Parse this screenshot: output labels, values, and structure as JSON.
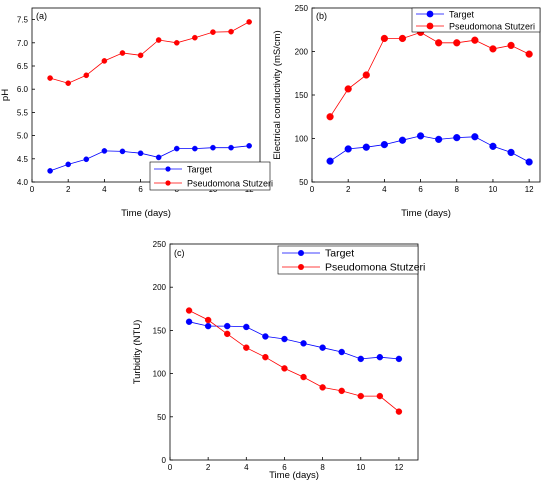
{
  "chart_data": [
    {
      "type": "line",
      "panel_label": "(a)",
      "xlabel": "Time (days)",
      "ylabel": "pH",
      "xlim": [
        0,
        12.6
      ],
      "ylim": [
        4.0,
        7.75
      ],
      "xticks": [
        "0",
        "2",
        "4",
        "6",
        "8",
        "10",
        "12"
      ],
      "yticks": [
        "4.0",
        "4.5",
        "5.0",
        "5.5",
        "6.0",
        "6.5",
        "7.0",
        "7.5"
      ],
      "x": [
        1,
        2,
        3,
        4,
        5,
        6,
        7,
        8,
        9,
        10,
        11,
        12
      ],
      "legend_position": "bottom-right",
      "series": [
        {
          "name": "Target",
          "color": "#0000ff",
          "values": [
            4.24,
            4.38,
            4.49,
            4.67,
            4.66,
            4.62,
            4.53,
            4.72,
            4.72,
            4.74,
            4.74,
            4.78
          ]
        },
        {
          "name": "Pseudomona Stutzeri",
          "color": "#ff0000",
          "values": [
            6.24,
            6.13,
            6.3,
            6.61,
            6.78,
            6.73,
            7.06,
            7.0,
            7.11,
            7.23,
            7.24,
            7.45
          ]
        }
      ]
    },
    {
      "type": "line",
      "panel_label": "(b)",
      "xlabel": "Time (days)",
      "ylabel": "Electrical conductivity (mS/cm)",
      "xlim": [
        0,
        12.6
      ],
      "ylim": [
        50,
        250
      ],
      "xticks": [
        "0",
        "2",
        "4",
        "6",
        "8",
        "10",
        "12"
      ],
      "yticks": [
        "50",
        "100",
        "150",
        "200",
        "250"
      ],
      "x": [
        1,
        2,
        3,
        4,
        5,
        6,
        7,
        8,
        9,
        10,
        11,
        12
      ],
      "legend_position": "top-right",
      "series": [
        {
          "name": "Target",
          "color": "#0000ff",
          "values": [
            74,
            88,
            90,
            93,
            98,
            103,
            99,
            101,
            102,
            91,
            84,
            73
          ]
        },
        {
          "name": "Pseudomona Stutzeri",
          "color": "#ff0000",
          "values": [
            125,
            157,
            173,
            215,
            215,
            222,
            210,
            210,
            213,
            203,
            207,
            197
          ]
        }
      ]
    },
    {
      "type": "line",
      "panel_label": "(c)",
      "xlabel": "Time (days)",
      "ylabel": "Turbidity (NTU)",
      "xlim": [
        0,
        13
      ],
      "ylim": [
        0,
        250
      ],
      "xticks": [
        "0",
        "2",
        "4",
        "6",
        "8",
        "10",
        "12"
      ],
      "yticks": [
        "0",
        "50",
        "100",
        "150",
        "200",
        "250"
      ],
      "x": [
        1,
        2,
        3,
        4,
        5,
        6,
        7,
        8,
        9,
        10,
        11,
        12
      ],
      "legend_position": "top-right",
      "series": [
        {
          "name": "Target",
          "color": "#0000ff",
          "values": [
            160,
            155,
            155,
            154,
            143,
            140,
            135,
            130,
            125,
            117,
            119,
            117
          ]
        },
        {
          "name": "Pseudomona Stutzeri",
          "color": "#ff0000",
          "values": [
            173,
            162,
            146,
            130,
            119,
            106,
            96,
            84,
            80,
            74,
            74,
            56
          ]
        }
      ]
    }
  ]
}
